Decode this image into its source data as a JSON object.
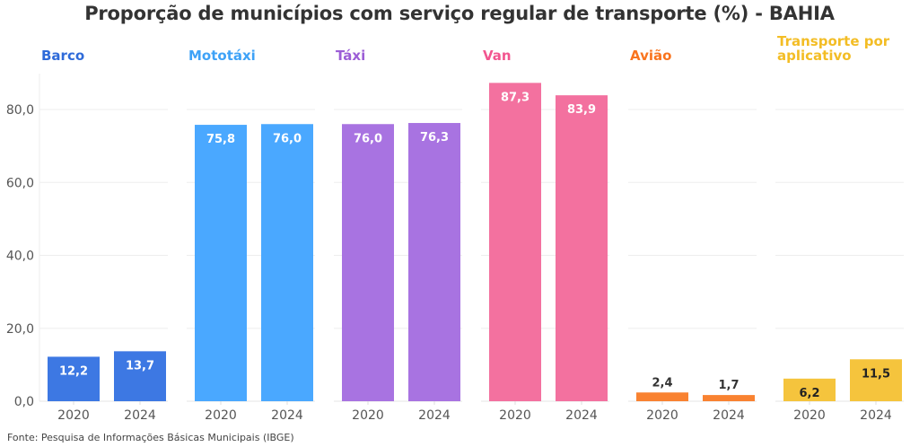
{
  "chart_data": {
    "type": "bar",
    "title": "Proporção de municípios com serviço regular de transporte (%) - BAHIA",
    "source": "Fonte: Pesquisa de Informações Básicas Municipais (IBGE)",
    "ylabel": "",
    "xlabel": "",
    "ylim": [
      0,
      90
    ],
    "yticks": [
      0,
      20,
      40,
      60,
      80
    ],
    "ytick_labels": [
      "0,0",
      "20,0",
      "40,0",
      "60,0",
      "80,0"
    ],
    "grid": true,
    "categories": [
      "2020",
      "2024"
    ],
    "panels": [
      {
        "name": "Barco",
        "color": "#3d78e3",
        "title_color": "#2f6bd9",
        "label_color": "#ffffff",
        "label_inside": true,
        "values": [
          12.2,
          13.7
        ],
        "labels": [
          "12,2",
          "13,7"
        ]
      },
      {
        "name": "Mototáxi",
        "color": "#4aa8ff",
        "title_color": "#3ea2f7",
        "label_color": "#ffffff",
        "label_inside": true,
        "values": [
          75.8,
          76.0
        ],
        "labels": [
          "75,8",
          "76,0"
        ]
      },
      {
        "name": "Táxi",
        "color": "#a873e1",
        "title_color": "#9c5ed6",
        "label_color": "#ffffff",
        "label_inside": true,
        "values": [
          76.0,
          76.3
        ],
        "labels": [
          "76,0",
          "76,3"
        ]
      },
      {
        "name": "Van",
        "color": "#f3719f",
        "title_color": "#f2558f",
        "label_color": "#ffffff",
        "label_inside": true,
        "values": [
          87.3,
          83.9
        ],
        "labels": [
          "87,3",
          "83,9"
        ]
      },
      {
        "name": "Avião",
        "color": "#f98231",
        "title_color": "#f9741e",
        "label_color": "#333333",
        "label_inside": false,
        "values": [
          2.4,
          1.7
        ],
        "labels": [
          "2,4",
          "1,7"
        ]
      },
      {
        "name": "Transporte por aplicativo",
        "title_lines": [
          "Transporte por",
          "aplicativo"
        ],
        "color": "#f5c43d",
        "title_color": "#f3bd25",
        "label_color": "#222222",
        "label_inside": true,
        "values": [
          6.2,
          11.5
        ],
        "labels": [
          "6,2",
          "11,5"
        ]
      }
    ]
  }
}
